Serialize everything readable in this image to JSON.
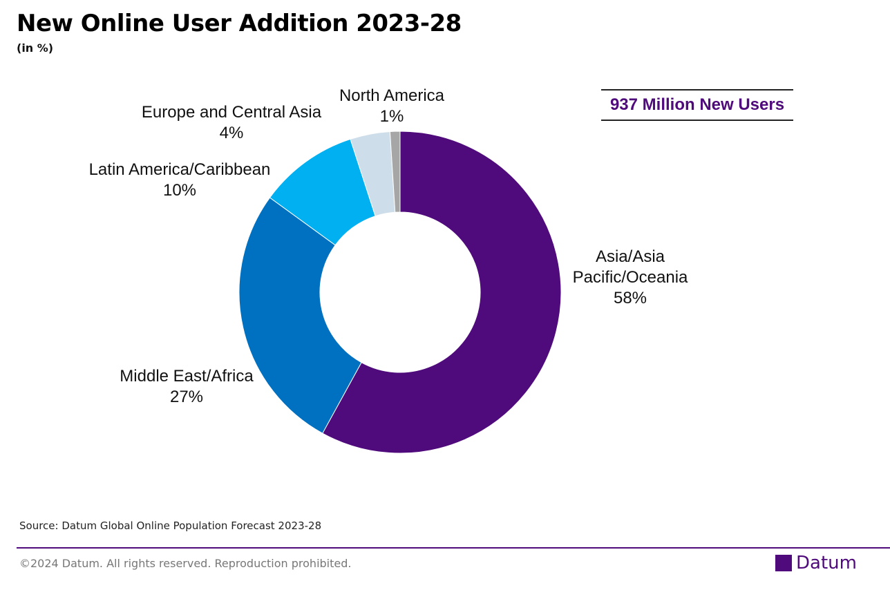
{
  "chart_data": {
    "type": "donut",
    "title": "New Online User Addition 2023-28",
    "subtitle": "(in %)",
    "annotation": "937 Million New Users",
    "categories": [
      "Asia/Asia Pacific/Oceania",
      "Middle East/Africa",
      "Latin America/Caribbean",
      "Europe and Central Asia",
      "North America"
    ],
    "values": [
      58,
      27,
      10,
      4,
      1
    ],
    "value_labels": [
      "58%",
      "27%",
      "10%",
      "4%",
      "1%"
    ],
    "colors": [
      "#4f0a7b",
      "#0070c0",
      "#00b0f0",
      "#cddde9",
      "#a6a6a6"
    ],
    "source": "Source: Datum Global Online Population Forecast 2023-28"
  },
  "footer": {
    "copyright": "©2024 Datum. All rights reserved. Reproduction prohibited.",
    "brand": "Datum"
  }
}
